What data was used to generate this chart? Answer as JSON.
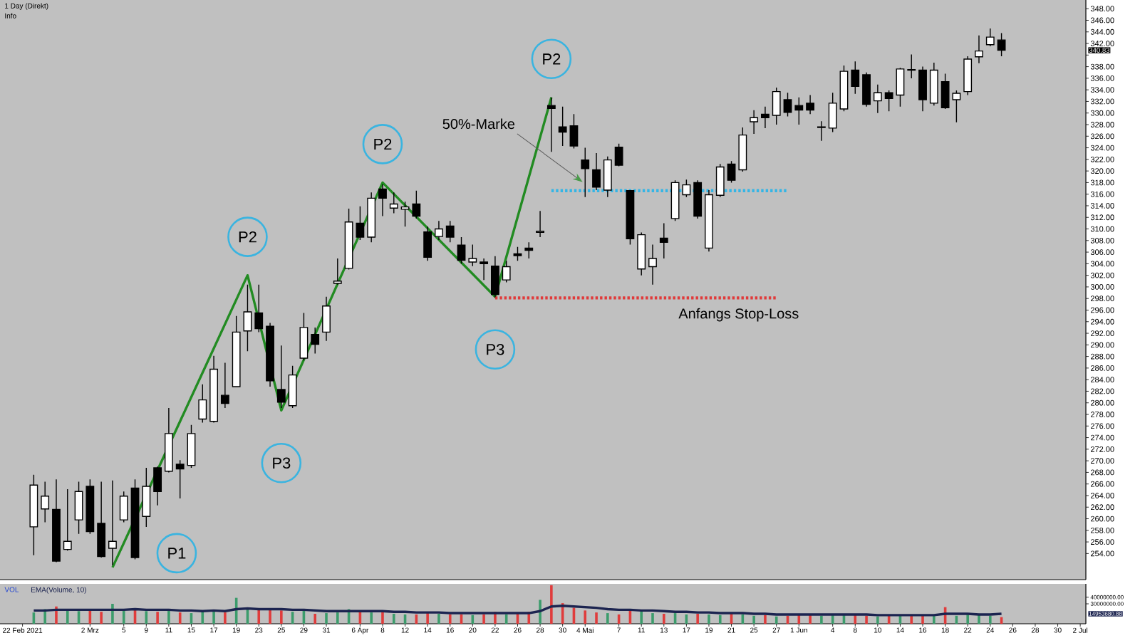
{
  "chart_data": [
    {
      "type": "candlestick",
      "title": "1 Day (Direkt)",
      "subtitle": "Info",
      "categories": [
        null,
        null,
        null,
        null,
        null,
        null,
        null,
        null,
        null,
        null,
        null,
        null,
        null,
        null,
        null,
        null,
        null,
        null,
        null,
        null,
        null,
        null,
        null,
        null,
        null,
        null,
        null,
        null,
        null,
        null,
        null,
        null,
        null,
        null,
        null,
        null,
        null,
        null,
        null,
        null,
        null,
        null,
        null,
        null,
        null,
        null,
        null,
        null,
        null,
        null,
        null,
        null,
        null,
        null,
        null,
        null,
        null,
        null,
        null,
        null,
        null,
        null,
        null,
        null,
        null,
        null,
        null,
        null,
        null,
        null,
        null,
        null,
        null,
        null,
        null,
        null,
        null,
        null,
        null,
        null,
        null,
        null,
        null,
        null,
        null,
        null,
        null,
        null,
        null,
        null,
        null,
        null,
        null,
        null,
        null
      ],
      "ohlc": [
        null,
        [
          258.6,
          267.6,
          253.7,
          265.8
        ],
        [
          261.7,
          266.4,
          259.4,
          263.9
        ],
        [
          261.6,
          266.8,
          252.5,
          252.7
        ],
        [
          254.7,
          265.1,
          254.5,
          256.1
        ],
        [
          259.8,
          266.4,
          257.4,
          264.7
        ],
        [
          265.6,
          266.8,
          257.4,
          257.8
        ],
        [
          259.2,
          266.4,
          253.3,
          253.5
        ],
        [
          254.9,
          266.6,
          252.0,
          256.1
        ],
        [
          259.8,
          264.7,
          259.4,
          263.9
        ],
        [
          265.3,
          266.8,
          253.0,
          253.3
        ],
        [
          260.4,
          268.8,
          258.6,
          265.6
        ],
        [
          268.8,
          269.0,
          262.3,
          264.7
        ],
        [
          268.2,
          279.1,
          268.0,
          274.7
        ],
        [
          269.4,
          270.1,
          263.5,
          268.6
        ],
        [
          269.2,
          276.2,
          268.8,
          274.7
        ],
        [
          277.2,
          283.2,
          276.6,
          280.5
        ],
        [
          276.8,
          288.1,
          276.6,
          285.8
        ],
        [
          281.3,
          286.9,
          279.1,
          279.9
        ],
        [
          282.8,
          295.0,
          282.8,
          292.2
        ],
        [
          292.4,
          300.4,
          288.9,
          295.7
        ],
        [
          295.5,
          300.4,
          292.2,
          292.8
        ],
        [
          293.2,
          293.8,
          282.8,
          283.8
        ],
        [
          282.3,
          289.9,
          279.1,
          280.1
        ],
        [
          279.5,
          286.4,
          279.1,
          284.8
        ],
        [
          287.7,
          295.5,
          287.3,
          293.0
        ],
        [
          291.8,
          293.0,
          288.5,
          290.1
        ],
        [
          292.2,
          298.3,
          290.7,
          296.7
        ],
        [
          300.6,
          304.9,
          300.4,
          301.0
        ],
        [
          303.2,
          313.5,
          303.0,
          311.2
        ],
        [
          311.0,
          313.9,
          308.1,
          308.6
        ],
        [
          308.6,
          316.3,
          307.7,
          315.3
        ],
        [
          316.9,
          317.7,
          312.2,
          315.3
        ],
        [
          313.6,
          316.3,
          312.7,
          314.3
        ],
        [
          313.4,
          314.7,
          310.4,
          313.8
        ],
        [
          314.3,
          316.6,
          311.8,
          312.2
        ],
        [
          309.5,
          310.4,
          304.5,
          305.1
        ],
        [
          308.7,
          311.4,
          308.1,
          310.0
        ],
        [
          310.5,
          311.4,
          307.7,
          308.6
        ],
        [
          307.2,
          308.6,
          304.0,
          304.6
        ],
        [
          304.3,
          307.3,
          303.6,
          304.9
        ],
        [
          304.3,
          304.9,
          301.2,
          304.0
        ],
        [
          303.6,
          305.3,
          298.2,
          298.7
        ],
        [
          301.2,
          304.5,
          300.8,
          303.5
        ],
        [
          305.7,
          306.9,
          304.5,
          305.4
        ],
        [
          306.7,
          307.7,
          304.9,
          306.3
        ],
        [
          309.4,
          313.1,
          308.6,
          309.6
        ],
        [
          331.3,
          332.7,
          323.3,
          330.8
        ],
        [
          327.6,
          331.1,
          324.3,
          326.7
        ],
        [
          327.8,
          329.8,
          323.9,
          324.3
        ],
        [
          321.9,
          324.0,
          315.5,
          320.4
        ],
        [
          320.2,
          323.1,
          316.7,
          317.2
        ],
        [
          316.7,
          322.5,
          315.5,
          321.9
        ],
        [
          324.1,
          324.7,
          320.8,
          321.0
        ],
        [
          316.6,
          316.7,
          307.3,
          308.3
        ],
        [
          303.1,
          309.4,
          302.0,
          309.0
        ],
        [
          303.5,
          307.3,
          300.4,
          304.9
        ],
        [
          308.4,
          311.0,
          304.9,
          307.7
        ],
        [
          311.8,
          318.4,
          311.4,
          318.0
        ],
        [
          315.9,
          318.5,
          315.5,
          317.6
        ],
        [
          318.0,
          318.4,
          311.8,
          312.2
        ],
        [
          306.7,
          316.7,
          306.1,
          315.9
        ],
        [
          315.8,
          321.2,
          315.5,
          320.7
        ],
        [
          321.2,
          321.7,
          318.0,
          318.4
        ],
        [
          320.2,
          327.5,
          319.9,
          326.2
        ],
        [
          328.5,
          330.5,
          326.4,
          329.2
        ],
        [
          329.8,
          331.1,
          327.4,
          329.2
        ],
        [
          329.6,
          334.4,
          328.0,
          333.7
        ],
        [
          332.3,
          333.5,
          329.4,
          330.1
        ],
        [
          331.3,
          332.7,
          328.0,
          330.5
        ],
        [
          331.7,
          333.1,
          329.8,
          330.5
        ],
        [
          327.5,
          328.6,
          325.2,
          327.6
        ],
        [
          327.4,
          333.5,
          326.7,
          331.7
        ],
        [
          330.7,
          338.2,
          330.3,
          337.2
        ],
        [
          337.4,
          338.9,
          333.3,
          334.6
        ],
        [
          336.6,
          337.0,
          331.1,
          331.5
        ],
        [
          332.1,
          334.9,
          330.0,
          333.5
        ],
        [
          333.5,
          333.9,
          330.3,
          332.5
        ],
        [
          333.1,
          337.8,
          331.1,
          337.6
        ],
        [
          337.5,
          340.1,
          336.0,
          337.4
        ],
        [
          337.4,
          338.0,
          330.3,
          332.3
        ],
        [
          331.7,
          338.7,
          331.3,
          337.4
        ],
        [
          335.4,
          336.8,
          330.7,
          330.9
        ],
        [
          332.3,
          333.9,
          328.4,
          333.4
        ],
        [
          333.7,
          339.8,
          333.1,
          339.3
        ],
        [
          339.7,
          343.4,
          338.6,
          340.7
        ],
        [
          341.8,
          344.6,
          341.5,
          343.1
        ],
        [
          342.6,
          343.8,
          339.8,
          340.83
        ],
        null,
        null,
        null,
        null,
        null,
        null,
        null
      ],
      "ylim": [
        249.5,
        349.5
      ],
      "yticks": [
        {
          "value": 254,
          "label": "254.00"
        },
        {
          "value": 256,
          "label": "256.00"
        },
        {
          "value": 258,
          "label": "258.00"
        },
        {
          "value": 260,
          "label": "260.00"
        },
        {
          "value": 262,
          "label": "262.00"
        },
        {
          "value": 264,
          "label": "264.00"
        },
        {
          "value": 266,
          "label": "266.00"
        },
        {
          "value": 268,
          "label": "268.00"
        },
        {
          "value": 270,
          "label": "270.00"
        },
        {
          "value": 272,
          "label": "272.00"
        },
        {
          "value": 274,
          "label": "274.00"
        },
        {
          "value": 276,
          "label": "276.00"
        },
        {
          "value": 278,
          "label": "278.00"
        },
        {
          "value": 280,
          "label": "280.00"
        },
        {
          "value": 282,
          "label": "282.00"
        },
        {
          "value": 284,
          "label": "284.00"
        },
        {
          "value": 286,
          "label": "286.00"
        },
        {
          "value": 288,
          "label": "288.00"
        },
        {
          "value": 290,
          "label": "290.00"
        },
        {
          "value": 292,
          "label": "292.00"
        },
        {
          "value": 294,
          "label": "294.00"
        },
        {
          "value": 296,
          "label": "296.00"
        },
        {
          "value": 298,
          "label": "298.00"
        },
        {
          "value": 300,
          "label": "300.00"
        },
        {
          "value": 302,
          "label": "302.00"
        },
        {
          "value": 304,
          "label": "304.00"
        },
        {
          "value": 306,
          "label": "306.00"
        },
        {
          "value": 308,
          "label": "308.00"
        },
        {
          "value": 310,
          "label": "310.00"
        },
        {
          "value": 312,
          "label": "312.00"
        },
        {
          "value": 314,
          "label": "314.00"
        },
        {
          "value": 316,
          "label": "316.00"
        },
        {
          "value": 318,
          "label": "318.00"
        },
        {
          "value": 320,
          "label": "320.00"
        },
        {
          "value": 322,
          "label": "322.00"
        },
        {
          "value": 324,
          "label": "324.00"
        },
        {
          "value": 326,
          "label": "326.00"
        },
        {
          "value": 328,
          "label": "328.00"
        },
        {
          "value": 330,
          "label": "330.00"
        },
        {
          "value": 332,
          "label": "332.00"
        },
        {
          "value": 334,
          "label": "334.00"
        },
        {
          "value": 336,
          "label": "336.00"
        },
        {
          "value": 338,
          "label": "338.00"
        },
        {
          "value": 340,
          "label": null
        },
        {
          "value": 342,
          "label": "342.00"
        },
        {
          "value": 344,
          "label": "344.00"
        },
        {
          "value": 346,
          "label": "346.00"
        },
        {
          "value": 348,
          "label": "348.00"
        }
      ],
      "series": [
        {
          "type": "line",
          "values": [
            null,
            null,
            null,
            null,
            null,
            null,
            null,
            null,
            251.6,
            null,
            null,
            null,
            null,
            null,
            null,
            null,
            null,
            null,
            null,
            null,
            302.0,
            null,
            null,
            278.7,
            null,
            null,
            null,
            null,
            null,
            null,
            null,
            null,
            318.0,
            null,
            null,
            null,
            null,
            null,
            null,
            null,
            null,
            null,
            298.3,
            null,
            null,
            null,
            null,
            332.7,
            null,
            null,
            null,
            null,
            null,
            null,
            null,
            null,
            null,
            null,
            null,
            null,
            null,
            null,
            null,
            null,
            null,
            null,
            null,
            null,
            null,
            null,
            null,
            null,
            null,
            null,
            null,
            null,
            null,
            null,
            null,
            null,
            null,
            null,
            null,
            null,
            null,
            null,
            null,
            null,
            null,
            null,
            null,
            null,
            null,
            null,
            null
          ],
          "color": "#228b22"
        },
        {
          "type": "line",
          "name": "50%-Marke",
          "values": [
            null,
            null,
            null,
            null,
            null,
            null,
            null,
            null,
            null,
            null,
            null,
            null,
            null,
            null,
            null,
            null,
            null,
            null,
            null,
            null,
            null,
            null,
            null,
            null,
            null,
            null,
            null,
            null,
            null,
            null,
            null,
            null,
            null,
            null,
            null,
            null,
            null,
            null,
            null,
            null,
            null,
            null,
            null,
            null,
            null,
            null,
            null,
            316.6,
            316.6,
            316.6,
            316.6,
            316.6,
            316.6,
            316.6,
            316.6,
            316.6,
            316.6,
            316.6,
            316.6,
            316.6,
            316.6,
            316.6,
            316.6,
            316.6,
            316.6,
            316.6,
            316.6,
            316.6,
            316.6,
            null,
            null,
            null,
            null,
            null,
            null,
            null,
            null,
            null,
            null,
            null,
            null,
            null,
            null,
            null,
            null,
            null,
            null,
            null,
            null,
            null,
            null,
            null,
            null,
            null,
            null
          ],
          "color": "#35b5e5",
          "line_style": "dotted"
        },
        {
          "type": "line",
          "name": "Anfangs Stop-Loss",
          "values": [
            null,
            null,
            null,
            null,
            null,
            null,
            null,
            null,
            null,
            null,
            null,
            null,
            null,
            null,
            null,
            null,
            null,
            null,
            null,
            null,
            null,
            null,
            null,
            null,
            null,
            null,
            null,
            null,
            null,
            null,
            null,
            null,
            null,
            null,
            null,
            null,
            null,
            null,
            null,
            null,
            null,
            null,
            298.1,
            298.1,
            298.1,
            298.1,
            298.1,
            298.1,
            298.1,
            298.1,
            298.1,
            298.1,
            298.1,
            298.1,
            298.1,
            298.1,
            298.1,
            298.1,
            298.1,
            298.1,
            298.1,
            298.1,
            298.1,
            298.1,
            298.1,
            298.1,
            298.1,
            298.1,
            null,
            null,
            null,
            null,
            null,
            null,
            null,
            null,
            null,
            null,
            null,
            null,
            null,
            null,
            null,
            null,
            null,
            null,
            null,
            null,
            null,
            null,
            null,
            null,
            null,
            null,
            null
          ],
          "color": "#e03a3a",
          "line_style": "dotted"
        }
      ],
      "annotations": [
        "P1",
        "P2",
        "P3",
        "P2",
        "P3",
        "P2",
        "340.83"
      ]
    },
    {
      "type": "bar",
      "title": "VOL",
      "categories": [
        "22 Feb 2021",
        null,
        null,
        null,
        null,
        null,
        "2 Mrz",
        null,
        null,
        "5",
        null,
        "9",
        null,
        "11",
        null,
        "15",
        null,
        "17",
        null,
        "19",
        null,
        "23",
        null,
        "25",
        null,
        "29",
        null,
        "31",
        null,
        null,
        "6 Apr",
        null,
        "8",
        null,
        "12",
        null,
        "14",
        null,
        "16",
        null,
        "20",
        null,
        "22",
        null,
        "26",
        null,
        "28",
        null,
        "30",
        null,
        "4 Mai",
        null,
        null,
        "7",
        null,
        "11",
        null,
        "13",
        null,
        "17",
        null,
        "19",
        null,
        "21",
        null,
        "25",
        null,
        "27",
        null,
        "1 Jun",
        null,
        null,
        "4",
        null,
        "8",
        null,
        "10",
        null,
        "14",
        null,
        "16",
        null,
        "18",
        null,
        "22",
        null,
        "24",
        null,
        "26",
        null,
        "28",
        null,
        "30",
        null,
        "2 Jul"
      ],
      "series": [
        {
          "type": "bar",
          "values": [
            null,
            17000000,
            22000000,
            26000000,
            20000000,
            19000000,
            22000000,
            18000000,
            30000000,
            20000000,
            23000000,
            19000000,
            18000000,
            22000000,
            17000000,
            16000000,
            18000000,
            21000000,
            17000000,
            39000000,
            24000000,
            21000000,
            22000000,
            20000000,
            18000000,
            20000000,
            15000000,
            16000000,
            17000000,
            22000000,
            18000000,
            17000000,
            19000000,
            15000000,
            14000000,
            14000000,
            18000000,
            15000000,
            14000000,
            14000000,
            13000000,
            14000000,
            18000000,
            14000000,
            16000000,
            18000000,
            36000000,
            58000000,
            31000000,
            24000000,
            20000000,
            17000000,
            16000000,
            14000000,
            21000000,
            19000000,
            16000000,
            15000000,
            16000000,
            14000000,
            15000000,
            14000000,
            13000000,
            17000000,
            14000000,
            12000000,
            13000000,
            11000000,
            12000000,
            13000000,
            14000000,
            12000000,
            13000000,
            15000000,
            13000000,
            12000000,
            11000000,
            13000000,
            12000000,
            14000000,
            13000000,
            12000000,
            25000000,
            12000000,
            14000000,
            13000000,
            12000000,
            10000000,
            null,
            null,
            null,
            null,
            null,
            null,
            null
          ],
          "colors": [
            null,
            "#3c9c6c",
            "#3c9c6c",
            "#e03c3c",
            "#3c9c6c",
            "#3c9c6c",
            "#e03c3c",
            "#e03c3c",
            "#3c9c6c",
            "#3c9c6c",
            "#e03c3c",
            "#3c9c6c",
            "#e03c3c",
            "#3c9c6c",
            "#e03c3c",
            "#3c9c6c",
            "#3c9c6c",
            "#3c9c6c",
            "#e03c3c",
            "#3c9c6c",
            "#3c9c6c",
            "#e03c3c",
            "#e03c3c",
            "#e03c3c",
            "#3c9c6c",
            "#3c9c6c",
            "#e03c3c",
            "#3c9c6c",
            "#3c9c6c",
            "#3c9c6c",
            "#e03c3c",
            "#3c9c6c",
            "#e03c3c",
            "#3c9c6c",
            "#3c9c6c",
            "#e03c3c",
            "#e03c3c",
            "#3c9c6c",
            "#e03c3c",
            "#e03c3c",
            "#3c9c6c",
            "#e03c3c",
            "#e03c3c",
            "#3c9c6c",
            "#e03c3c",
            "#e03c3c",
            "#3c9c6c",
            "#e03c3c",
            "#e03c3c",
            "#e03c3c",
            "#e03c3c",
            "#e03c3c",
            "#3c9c6c",
            "#e03c3c",
            "#e03c3c",
            "#3c9c6c",
            "#3c9c6c",
            "#e03c3c",
            "#3c9c6c",
            "#3c9c6c",
            "#e03c3c",
            "#3c9c6c",
            "#3c9c6c",
            "#e03c3c",
            "#3c9c6c",
            "#3c9c6c",
            "#e03c3c",
            "#3c9c6c",
            "#e03c3c",
            "#e03c3c",
            "#e03c3c",
            "#3c9c6c",
            "#3c9c6c",
            "#3c9c6c",
            "#e03c3c",
            "#e03c3c",
            "#3c9c6c",
            "#e03c3c",
            "#3c9c6c",
            "#e03c3c",
            "#e03c3c",
            "#3c9c6c",
            "#e03c3c",
            "#3c9c6c",
            "#3c9c6c",
            "#3c9c6c",
            "#3c9c6c",
            "#e03c3c",
            null,
            null,
            null,
            null,
            null,
            null,
            null
          ]
        },
        {
          "type": "line",
          "name": "EMA(Volume, 10)",
          "values": [
            null,
            20000000,
            20000000,
            21000000,
            21000000,
            21000000,
            21000000,
            21000000,
            21000000,
            21000000,
            22000000,
            21000000,
            21000000,
            21000000,
            20000000,
            20000000,
            19000000,
            20000000,
            19000000,
            22000000,
            23000000,
            22000000,
            22000000,
            22000000,
            21000000,
            21000000,
            20000000,
            19000000,
            19000000,
            19000000,
            19000000,
            19000000,
            19000000,
            18000000,
            18000000,
            17000000,
            17000000,
            17000000,
            16000000,
            16000000,
            16000000,
            16000000,
            16000000,
            16000000,
            16000000,
            16000000,
            19000000,
            26000000,
            27000000,
            26000000,
            25000000,
            24000000,
            22000000,
            21000000,
            21000000,
            20000000,
            20000000,
            19000000,
            18000000,
            18000000,
            17000000,
            17000000,
            16000000,
            16000000,
            16000000,
            15000000,
            15000000,
            14000000,
            14000000,
            14000000,
            14000000,
            14000000,
            14000000,
            14000000,
            14000000,
            14000000,
            13000000,
            13000000,
            13000000,
            13000000,
            13000000,
            13000000,
            15000000,
            15000000,
            15000000,
            14000000,
            14000000,
            15000000,
            null,
            null,
            null,
            null,
            null,
            null,
            null
          ],
          "color": "#1c2450"
        }
      ],
      "ylim": [
        0,
        60000000
      ],
      "yticks": [
        {
          "value": 30000000,
          "label": "30000000.00"
        },
        {
          "value": 40000000,
          "label": "40000000.00"
        }
      ],
      "legend": "top left",
      "annotations": [
        "14953680.88"
      ]
    }
  ]
}
